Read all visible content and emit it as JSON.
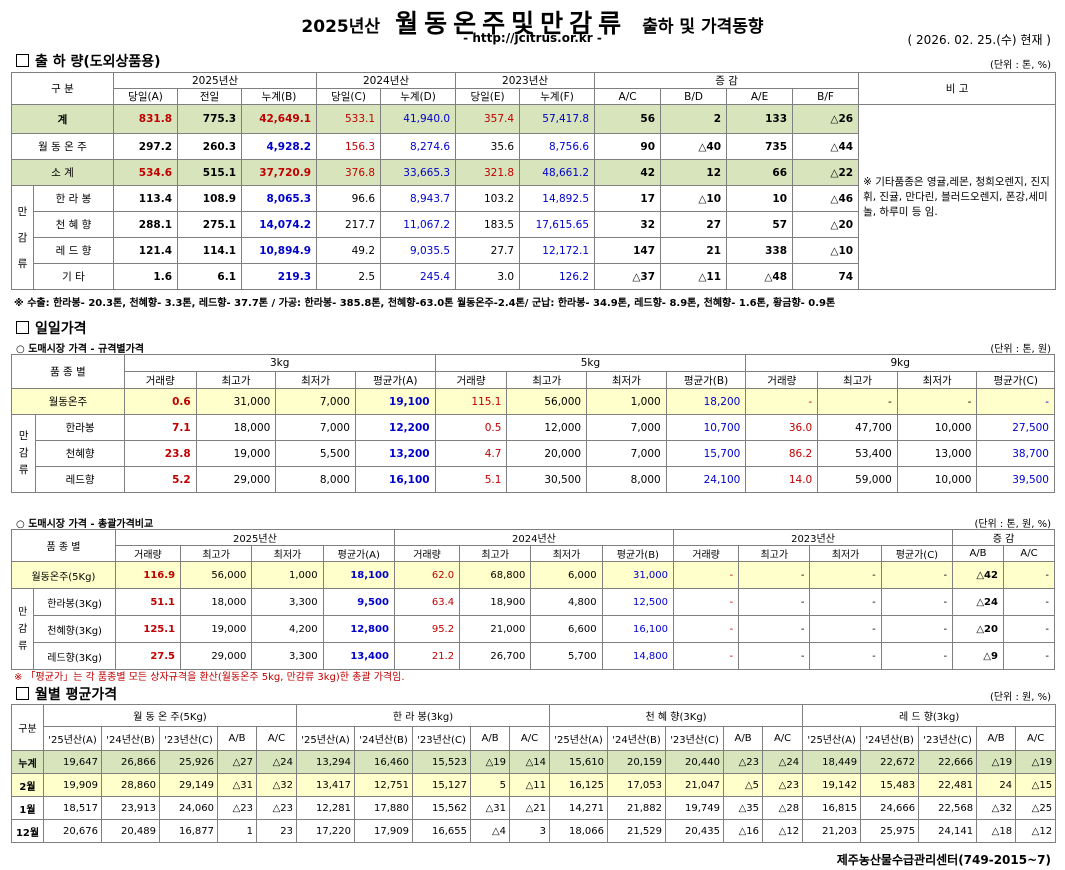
{
  "header": {
    "year": "2025년산",
    "main": "월동온주및만감류",
    "sub": "출하 및 가격동향",
    "url": "- http://jcitrus.or.kr -",
    "date": "( 2026. 02. 25.(수) 현재 )"
  },
  "shipment": {
    "title": "출 하 량(도외상품용)",
    "unit": "(단위 : 톤, %)",
    "h_gubun": "구    분",
    "h_2025": "2025년산",
    "h_2024": "2024년산",
    "h_2023": "2023년산",
    "h_change": "증    감",
    "h_remark": "비 고",
    "cols": [
      "당일(A)",
      "전일",
      "누계(B)",
      "당일(C)",
      "누계(D)",
      "당일(E)",
      "누계(F)",
      "A/C",
      "B/D",
      "A/E",
      "B/F"
    ],
    "group_label": [
      "만",
      "감",
      "류"
    ],
    "rows": [
      {
        "label": "계",
        "v": [
          "831.8",
          "775.3",
          "42,649.1",
          "533.1",
          "41,940.0",
          "357.4",
          "57,417.8",
          "56",
          "2",
          "133",
          "△26"
        ]
      },
      {
        "label": "월 동 온 주",
        "v": [
          "297.2",
          "260.3",
          "4,928.2",
          "156.3",
          "8,274.6",
          "35.6",
          "8,756.6",
          "90",
          "△40",
          "735",
          "△44"
        ]
      },
      {
        "label": "소    계",
        "v": [
          "534.6",
          "515.1",
          "37,720.9",
          "376.8",
          "33,665.3",
          "321.8",
          "48,661.2",
          "42",
          "12",
          "66",
          "△22"
        ]
      },
      {
        "label": "한 라 봉",
        "v": [
          "113.4",
          "108.9",
          "8,065.3",
          "96.6",
          "8,943.7",
          "103.2",
          "14,892.5",
          "17",
          "△10",
          "10",
          "△46"
        ]
      },
      {
        "label": "천 혜 향",
        "v": [
          "288.1",
          "275.1",
          "14,074.2",
          "217.7",
          "11,067.2",
          "183.5",
          "17,615.65",
          "32",
          "27",
          "57",
          "△20"
        ]
      },
      {
        "label": "레 드 향",
        "v": [
          "121.4",
          "114.1",
          "10,894.9",
          "49.2",
          "9,035.5",
          "27.7",
          "12,172.1",
          "147",
          "21",
          "338",
          "△10"
        ]
      },
      {
        "label": "기    타",
        "v": [
          "1.6",
          "6.1",
          "219.3",
          "2.5",
          "245.4",
          "3.0",
          "126.2",
          "△37",
          "△11",
          "△48",
          "74"
        ]
      }
    ],
    "remark": "※ 기타품종은 영귤,레몬, 청희오렌지, 진지휘, 진귤, 만다린, 블러드오렌지, 폰강,세미놀, 하루미 등 임.",
    "note": "※ 수출: 한라봉- 20.3톤, 천혜향- 3.3톤, 레드향- 37.7톤 / 가공: 한라봉- 385.8톤, 천혜향-63.0톤 월동온주-2.4톤/  군납: 한라봉- 34.9톤, 레드향- 8.9톤, 천혜향- 1.6톤, 황금향- 0.9톤"
  },
  "daily": {
    "title": "일일가격",
    "sub": "○ 도매시장 가격 - 규격별가격",
    "unit": "(단위 : 톤, 원)",
    "h_item": "품 종 별",
    "h_3": "3kg",
    "h_5": "5kg",
    "h_9": "9kg",
    "cols": [
      "거래량",
      "최고가",
      "최저가",
      "평균가(A)",
      "거래량",
      "최고가",
      "최저가",
      "평균가(B)",
      "거래량",
      "최고가",
      "최저가",
      "평균가(C)"
    ],
    "group_label": [
      "만",
      "감",
      "류"
    ],
    "rows": [
      {
        "label": "월동온주",
        "v": [
          "0.6",
          "31,000",
          "7,000",
          "19,100",
          "115.1",
          "56,000",
          "1,000",
          "18,200",
          "-",
          "-",
          "-",
          "-"
        ]
      },
      {
        "label": "한라봉",
        "v": [
          "7.1",
          "18,000",
          "7,000",
          "12,200",
          "0.5",
          "12,000",
          "7,000",
          "10,700",
          "36.0",
          "47,700",
          "10,000",
          "27,500"
        ]
      },
      {
        "label": "천혜향",
        "v": [
          "23.8",
          "19,000",
          "5,500",
          "13,200",
          "4.7",
          "20,000",
          "7,000",
          "15,700",
          "86.2",
          "53,400",
          "13,000",
          "38,700"
        ]
      },
      {
        "label": "레드향",
        "v": [
          "5.2",
          "29,000",
          "8,000",
          "16,100",
          "5.1",
          "30,500",
          "8,000",
          "24,100",
          "14.0",
          "59,000",
          "10,000",
          "39,500"
        ]
      }
    ]
  },
  "overall": {
    "sub": "○ 도매시장 가격 - 총괄가격비교",
    "unit": "(단위 : 톤, 원, %)",
    "h_item": "품 종 별",
    "h_2025": "2025년산",
    "h_2024": "2024년산",
    "h_2023": "2023년산",
    "h_change": "증    감",
    "cols": [
      "거래량",
      "최고가",
      "최저가",
      "평균가(A)",
      "거래량",
      "최고가",
      "최저가",
      "평균가(B)",
      "거래량",
      "최고가",
      "최저가",
      "평균가(C)",
      "A/B",
      "A/C"
    ],
    "group_label": [
      "만",
      "감",
      "류"
    ],
    "rows": [
      {
        "label": "월동온주(5Kg)",
        "v": [
          "116.9",
          "56,000",
          "1,000",
          "18,100",
          "62.0",
          "68,800",
          "6,000",
          "31,000",
          "-",
          "-",
          "-",
          "-",
          "△42",
          "-"
        ]
      },
      {
        "label": "한라봉(3Kg)",
        "v": [
          "51.1",
          "18,000",
          "3,300",
          "9,500",
          "63.4",
          "18,900",
          "4,800",
          "12,500",
          "-",
          "-",
          "-",
          "-",
          "△24",
          "-"
        ]
      },
      {
        "label": "천혜향(3Kg)",
        "v": [
          "125.1",
          "19,000",
          "4,200",
          "12,800",
          "95.2",
          "21,000",
          "6,600",
          "16,100",
          "-",
          "-",
          "-",
          "-",
          "△20",
          "-"
        ]
      },
      {
        "label": "레드향(3Kg)",
        "v": [
          "27.5",
          "29,000",
          "3,300",
          "13,400",
          "21.2",
          "26,700",
          "5,700",
          "14,800",
          "-",
          "-",
          "-",
          "-",
          "△9",
          "-"
        ]
      }
    ],
    "note": "※ 「평균가」는 각 품종별 모든 상자규격을 환산(월동온주 5kg, 만감류 3kg)한 총괄 가격임."
  },
  "monthly": {
    "title": "월별 평균가격",
    "unit": "(단위 : 원, %)",
    "h_gubun": "구분",
    "groups": [
      "월 동 온 주(5Kg)",
      "한 라 봉(3kg)",
      "천 혜 향(3Kg)",
      "레 드 향(3kg)"
    ],
    "cols": [
      "'25년산(A)",
      "'24년산(B)",
      "'23년산(C)",
      "A/B",
      "A/C"
    ],
    "rows": [
      {
        "label": "누계",
        "v": [
          "19,647",
          "26,866",
          "25,926",
          "△27",
          "△24",
          "13,294",
          "16,460",
          "15,523",
          "△19",
          "△14",
          "15,610",
          "20,159",
          "20,440",
          "△23",
          "△24",
          "18,449",
          "22,672",
          "22,666",
          "△19",
          "△19"
        ]
      },
      {
        "label": "2월",
        "v": [
          "19,909",
          "28,860",
          "29,149",
          "△31",
          "△32",
          "13,417",
          "12,751",
          "15,127",
          "5",
          "△11",
          "16,125",
          "17,053",
          "21,047",
          "△5",
          "△23",
          "19,142",
          "15,483",
          "22,481",
          "24",
          "△15"
        ]
      },
      {
        "label": "1월",
        "v": [
          "18,517",
          "23,913",
          "24,060",
          "△23",
          "△23",
          "12,281",
          "17,880",
          "15,562",
          "△31",
          "△21",
          "14,271",
          "21,882",
          "19,749",
          "△35",
          "△28",
          "16,815",
          "24,666",
          "22,568",
          "△32",
          "△25"
        ]
      },
      {
        "label": "12월",
        "v": [
          "20,676",
          "20,489",
          "16,877",
          "1",
          "23",
          "17,220",
          "17,909",
          "16,655",
          "△4",
          "3",
          "18,066",
          "21,529",
          "20,435",
          "△16",
          "△12",
          "21,203",
          "25,975",
          "24,141",
          "△18",
          "△12"
        ]
      }
    ]
  },
  "footer": "제주농산물수급관리센터(749-2015~7)",
  "colors": {
    "green": "#d8e4bc",
    "yellow": "#ffffcc",
    "red": "#c00000",
    "blue": "#0000cc"
  }
}
